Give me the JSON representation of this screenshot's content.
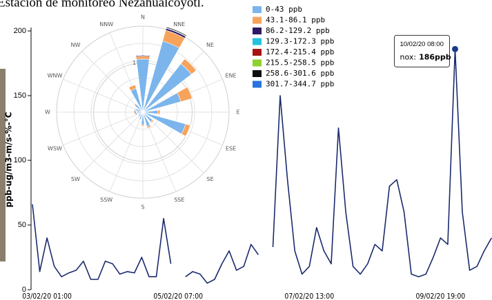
{
  "chart_data": [
    {
      "type": "line",
      "title": "Estación de monitoreo Nezahualcoyotl.",
      "y_label": "ppb-ug/m3-m/s-%-°C",
      "categories": [
        null,
        null,
        "03/02/20 01:00",
        null,
        null,
        null,
        null,
        null,
        null,
        null,
        null,
        null,
        null,
        null,
        null,
        null,
        null,
        null,
        null,
        null,
        "05/02/20 07:00",
        null,
        null,
        null,
        null,
        null,
        null,
        null,
        null,
        null,
        null,
        null,
        null,
        null,
        null,
        null,
        null,
        null,
        "07/02/20 13:00",
        null,
        null,
        null,
        null,
        null,
        null,
        null,
        null,
        null,
        null,
        null,
        null,
        null,
        null,
        null,
        null,
        null,
        "09/02/20 19:00",
        null,
        null,
        null,
        null,
        null,
        null,
        null
      ],
      "values": [
        66,
        14,
        40,
        18,
        10,
        13,
        15,
        22,
        8,
        8,
        22,
        20,
        12,
        14,
        13,
        25,
        10,
        10,
        55,
        20,
        null,
        10,
        14,
        12,
        5,
        8,
        20,
        30,
        15,
        18,
        35,
        27,
        null,
        33,
        150,
        85,
        30,
        12,
        18,
        48,
        30,
        20,
        125,
        60,
        18,
        12,
        20,
        35,
        30,
        80,
        85,
        60,
        12,
        10,
        12,
        25,
        40,
        35,
        186,
        60,
        15,
        18,
        30,
        40
      ],
      "color": "#1a2a6c",
      "ylim": [
        0,
        200
      ],
      "yticks": [
        0,
        50,
        100,
        150,
        200
      ],
      "tooltip": {
        "x_label": "10/02/20 08:00",
        "series_label": "nox:",
        "value": 186,
        "value_label": "186ppb"
      }
    },
    {
      "type": "windrose",
      "directions": [
        "N",
        "NNE",
        "NE",
        "ENE",
        "E",
        "ESE",
        "SE",
        "SSE",
        "S",
        "SSW",
        "SW",
        "WSW",
        "W",
        "WNW",
        "NW",
        "NNW"
      ],
      "rlim": [
        0,
        17.5
      ],
      "rticks": [
        {
          "value": 0,
          "label": "0%"
        },
        {
          "value": 10,
          "label": "10%"
        }
      ],
      "legend": "top-right",
      "series": [
        {
          "name": "0-43 ppb",
          "color": "#7cb5ec",
          "values": [
            10.8,
            15.0,
            12.5,
            8.0,
            3.0,
            9.0,
            2.5,
            3.0,
            2.5,
            1.5,
            1.2,
            1.0,
            1.2,
            1.5,
            2.0,
            5.0
          ]
        },
        {
          "name": "43.1-86.1 ppb",
          "color": "#f7a35c",
          "values": [
            0.6,
            2.3,
            1.3,
            2.4,
            0.5,
            1.0,
            0.3,
            0.4,
            0.3,
            0.2,
            0.1,
            0,
            0.1,
            0.2,
            0.3,
            0.8
          ]
        },
        {
          "name": "86.2-129.2 ppb",
          "color": "#2e1a66",
          "values": [
            0.2,
            0.4,
            0,
            0,
            0,
            0,
            0,
            0,
            0,
            0,
            0,
            0,
            0,
            0,
            0,
            0
          ]
        },
        {
          "name": "129.3-172.3 ppb",
          "color": "#22c3df",
          "values": [
            0,
            0.1,
            0,
            0,
            0,
            0,
            0,
            0,
            0,
            0,
            0,
            0,
            0,
            0,
            0,
            0
          ]
        },
        {
          "name": "172.4-215.4 ppb",
          "color": "#a81414",
          "values": [
            0,
            0,
            0,
            0,
            0,
            0,
            0,
            0,
            0,
            0,
            0,
            0,
            0,
            0,
            0,
            0
          ]
        },
        {
          "name": "215.5-258.5 ppb",
          "color": "#8fd12e",
          "values": [
            0,
            0,
            0,
            0,
            0,
            0,
            0,
            0,
            0,
            0,
            0,
            0,
            0,
            0,
            0,
            0
          ]
        },
        {
          "name": "258.6-301.6 ppb",
          "color": "#0d0d12",
          "values": [
            0,
            0.2,
            0,
            0,
            0,
            0,
            0,
            0,
            0,
            0,
            0,
            0,
            0,
            0,
            0,
            0
          ]
        },
        {
          "name": "301.7-344.7 ppb",
          "color": "#2a74e0",
          "values": [
            0,
            0,
            0,
            0,
            0,
            0,
            0,
            0,
            0,
            0,
            0,
            0,
            0,
            0,
            0,
            0
          ]
        }
      ]
    }
  ]
}
